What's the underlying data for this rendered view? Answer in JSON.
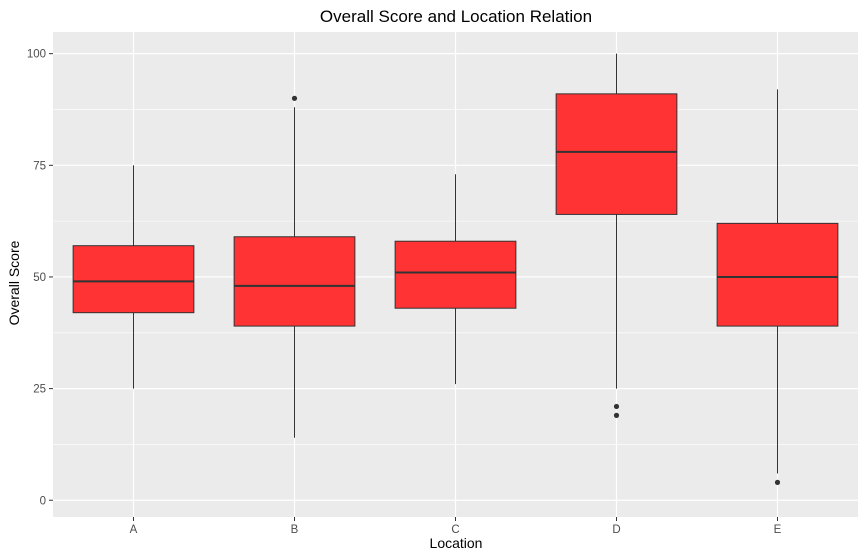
{
  "chart_data": {
    "type": "boxplot",
    "title": "Overall Score and Location Relation",
    "xlabel": "Location",
    "ylabel": "Overall Score",
    "ylim": [
      0,
      100
    ],
    "yticks": [
      0,
      25,
      50,
      75,
      100
    ],
    "grid": true,
    "legend": "none",
    "categories": [
      "A",
      "B",
      "C",
      "D",
      "E"
    ],
    "boxes": [
      {
        "category": "A",
        "whisker_low": 25,
        "q1": 42,
        "median": 49,
        "q3": 57,
        "whisker_high": 75,
        "outliers": []
      },
      {
        "category": "B",
        "whisker_low": 14,
        "q1": 39,
        "median": 48,
        "q3": 59,
        "whisker_high": 88,
        "outliers": [
          90
        ]
      },
      {
        "category": "C",
        "whisker_low": 26,
        "q1": 43,
        "median": 51,
        "q3": 58,
        "whisker_high": 73,
        "outliers": []
      },
      {
        "category": "D",
        "whisker_low": 25,
        "q1": 64,
        "median": 78,
        "q3": 91,
        "whisker_high": 100,
        "outliers": [
          21,
          19
        ]
      },
      {
        "category": "E",
        "whisker_low": 6,
        "q1": 39,
        "median": 50,
        "q3": 62,
        "whisker_high": 92,
        "outliers": [
          4
        ]
      }
    ],
    "colors": {
      "box_fill": "#ff3333",
      "box_line": "#333333",
      "panel_background": "#ebebeb",
      "grid": "#ffffff",
      "axis_text": "#4d4d4d"
    }
  }
}
